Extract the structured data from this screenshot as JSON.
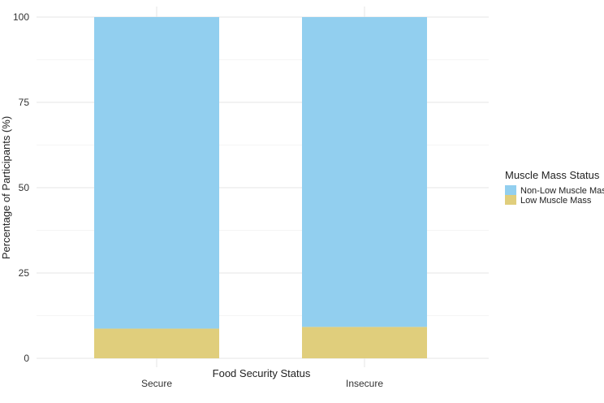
{
  "chart_data": {
    "type": "bar",
    "stacked": true,
    "categories": [
      "Secure",
      "Insecure"
    ],
    "series": [
      {
        "name": "Low Muscle Mass",
        "values": [
          8.7,
          9.2
        ],
        "color": "#E0CE7C"
      },
      {
        "name": "Non-Low Muscle Mass",
        "values": [
          91.3,
          90.8
        ],
        "color": "#92CFEF"
      }
    ],
    "xlabel": "Food Security Status",
    "ylabel": "Percentage of Participants (%)",
    "ylim": [
      0,
      100
    ],
    "yticks": [
      "0",
      "25",
      "50",
      "75",
      "100"
    ],
    "grid": true,
    "legend": {
      "title": "Muscle Mass Status",
      "placement": "right",
      "entries": [
        {
          "label": "Non-Low Muscle Mass",
          "color": "#92CFEF"
        },
        {
          "label": "Low Muscle Mass",
          "color": "#E0CE7C"
        }
      ]
    }
  }
}
